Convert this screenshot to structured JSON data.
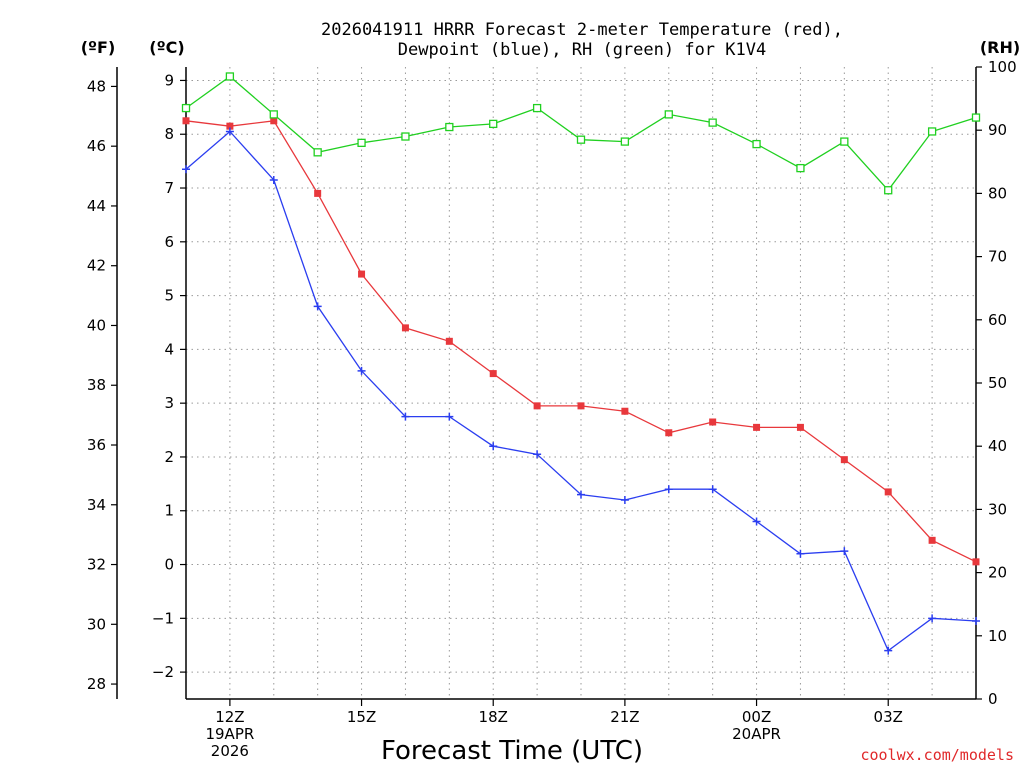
{
  "chart_data": {
    "type": "line",
    "title_line1": "2026041911 HRRR Forecast 2-meter Temperature (red),",
    "title_line2": "Dewpoint (blue), RH (green) for K1V4",
    "xlabel": "Forecast Time (UTC)",
    "credit": "coolwx.com/models",
    "units": {
      "fahrenheit": "(ºF)",
      "celsius": "(ºC)",
      "rh": "(RH)"
    },
    "x_hours": [
      11,
      12,
      13,
      14,
      15,
      16,
      17,
      18,
      19,
      20,
      21,
      22,
      23,
      24,
      25,
      26,
      27,
      28,
      29
    ],
    "xlim": [
      11,
      29
    ],
    "x_ticks": [
      {
        "hour": 12,
        "lines": [
          "12Z",
          "19APR",
          "2026"
        ]
      },
      {
        "hour": 15,
        "lines": [
          "15Z"
        ]
      },
      {
        "hour": 18,
        "lines": [
          "18Z"
        ]
      },
      {
        "hour": 21,
        "lines": [
          "21Z"
        ]
      },
      {
        "hour": 24,
        "lines": [
          "00Z",
          "20APR"
        ]
      },
      {
        "hour": 27,
        "lines": [
          "03Z"
        ]
      }
    ],
    "celsius_ylim": [
      -2.5,
      9.25
    ],
    "celsius_ticks": [
      "9",
      "8",
      "7",
      "6",
      "5",
      "4",
      "3",
      "2",
      "1",
      "0",
      "−1",
      "−2"
    ],
    "fahrenheit_ticks": [
      "48",
      "46",
      "44",
      "42",
      "40",
      "38",
      "36",
      "34",
      "32",
      "30",
      "28"
    ],
    "rh_ylim": [
      0,
      100
    ],
    "rh_ticks": [
      "100",
      "90",
      "80",
      "70",
      "60",
      "50",
      "40",
      "30",
      "20",
      "10",
      "0"
    ],
    "series": [
      {
        "name": "Temperature",
        "color": "#e8383c",
        "marker": "filled-square",
        "unit": "C",
        "values": [
          8.25,
          8.15,
          8.25,
          6.9,
          5.4,
          4.4,
          4.15,
          3.55,
          2.95,
          2.95,
          2.85,
          2.45,
          2.65,
          2.55,
          2.55,
          1.95,
          1.35,
          0.45,
          0.05
        ]
      },
      {
        "name": "Dewpoint",
        "color": "#2b3ef0",
        "marker": "plus",
        "unit": "C",
        "values": [
          7.35,
          8.05,
          7.15,
          4.8,
          3.6,
          2.75,
          2.75,
          2.2,
          2.05,
          1.3,
          1.2,
          1.4,
          1.4,
          0.8,
          0.2,
          0.25,
          -1.6,
          -1.0,
          -1.05
        ]
      },
      {
        "name": "RH",
        "color": "#20d020",
        "marker": "open-square",
        "unit": "%",
        "values": [
          93.5,
          98.5,
          92.5,
          86.5,
          88,
          89,
          90.5,
          91,
          93.5,
          88.5,
          88.2,
          92.5,
          91.2,
          87.8,
          84,
          88.2,
          80.5,
          89.8,
          92
        ]
      }
    ]
  }
}
